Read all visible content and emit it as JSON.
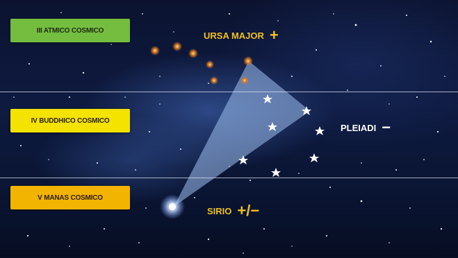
{
  "levels": {
    "atmic": "III ATMICO COSMICO",
    "buddhic": "IV BUDDHICO COSMICO",
    "manas": "V MANAS COSMICO"
  },
  "stars": {
    "ursa_major": {
      "name": "URSA MAJOR",
      "sign": "+"
    },
    "pleiadi": {
      "name": "PLEIADI",
      "sign": "−"
    },
    "sirio": {
      "name": "SIRIO",
      "sign": "+/−"
    }
  },
  "colors": {
    "atmic_box": "#74bd3f",
    "buddhic_box": "#f4e200",
    "manas_box": "#f2b400",
    "constellation_label": "#f0c020",
    "light_beam": "#9fc0f0"
  }
}
